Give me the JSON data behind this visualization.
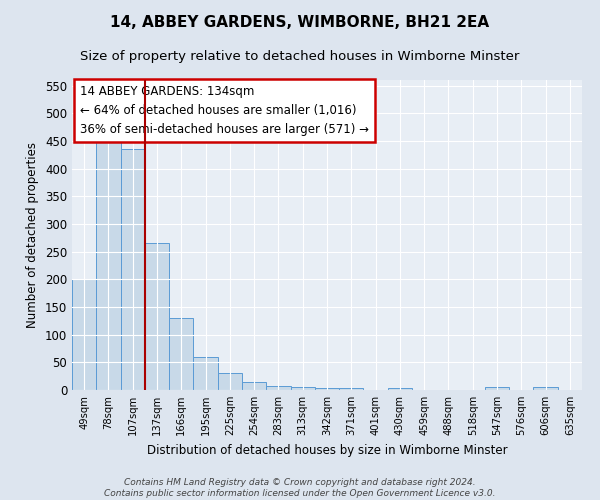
{
  "title": "14, ABBEY GARDENS, WIMBORNE, BH21 2EA",
  "subtitle": "Size of property relative to detached houses in Wimborne Minster",
  "xlabel": "Distribution of detached houses by size in Wimborne Minster",
  "ylabel": "Number of detached properties",
  "bar_labels": [
    "49sqm",
    "78sqm",
    "107sqm",
    "137sqm",
    "166sqm",
    "195sqm",
    "225sqm",
    "254sqm",
    "283sqm",
    "313sqm",
    "342sqm",
    "371sqm",
    "401sqm",
    "430sqm",
    "459sqm",
    "488sqm",
    "518sqm",
    "547sqm",
    "576sqm",
    "606sqm",
    "635sqm"
  ],
  "bar_values": [
    200,
    450,
    435,
    265,
    130,
    60,
    30,
    15,
    8,
    5,
    3,
    4,
    0,
    4,
    0,
    0,
    0,
    5,
    0,
    5,
    0
  ],
  "bar_color": "#c8d9e8",
  "bar_edge_color": "#5b9bd5",
  "vline_color": "#aa0000",
  "annotation_text": "14 ABBEY GARDENS: 134sqm\n← 64% of detached houses are smaller (1,016)\n36% of semi-detached houses are larger (571) →",
  "annotation_box_color": "#ffffff",
  "annotation_box_edge": "#cc0000",
  "ylim": [
    0,
    560
  ],
  "yticks": [
    0,
    50,
    100,
    150,
    200,
    250,
    300,
    350,
    400,
    450,
    500,
    550
  ],
  "background_color": "#dde5ef",
  "plot_bg_color": "#e8eef5",
  "footer_text": "Contains HM Land Registry data © Crown copyright and database right 2024.\nContains public sector information licensed under the Open Government Licence v3.0.",
  "title_fontsize": 11,
  "subtitle_fontsize": 9.5
}
